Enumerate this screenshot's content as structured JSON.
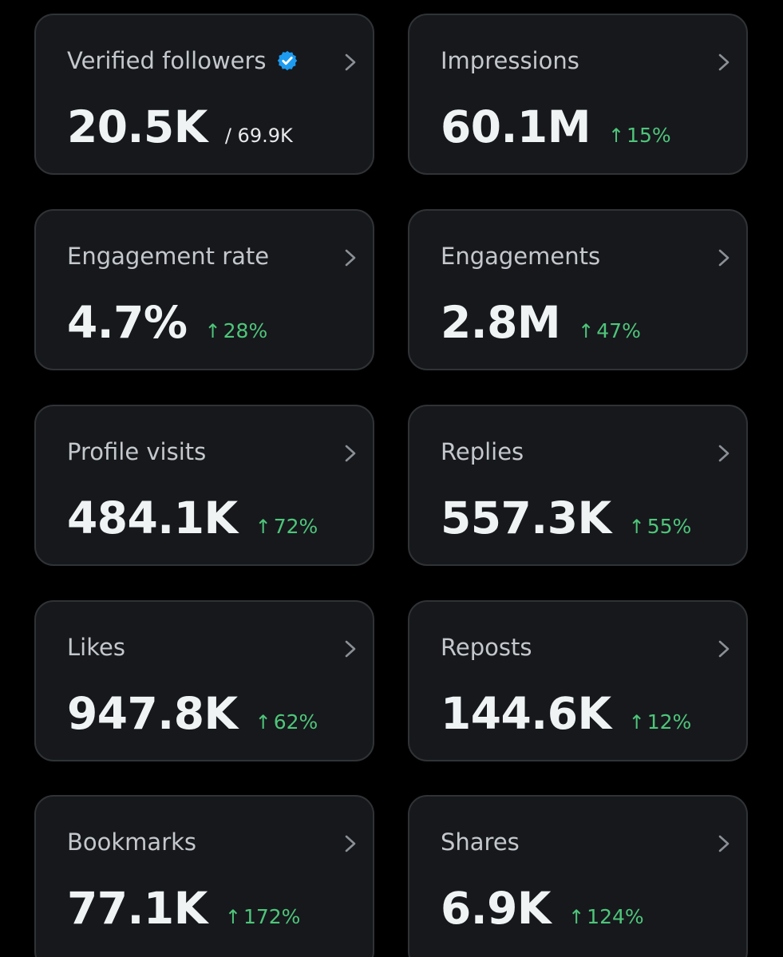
{
  "stats": [
    {
      "label": "Verified followers",
      "value": "20.5K",
      "total": "/ 69.9K",
      "change": "",
      "verified": true
    },
    {
      "label": "Impressions",
      "value": "60.1M",
      "total": "",
      "change": "15%"
    },
    {
      "label": "Engagement rate",
      "value": "4.7%",
      "total": "",
      "change": "28%"
    },
    {
      "label": "Engagements",
      "value": "2.8M",
      "total": "",
      "change": "47%"
    },
    {
      "label": "Profile visits",
      "value": "484.1K",
      "total": "",
      "change": "72%"
    },
    {
      "label": "Replies",
      "value": "557.3K",
      "total": "",
      "change": "55%"
    },
    {
      "label": "Likes",
      "value": "947.8K",
      "total": "",
      "change": "62%"
    },
    {
      "label": "Reposts",
      "value": "144.6K",
      "total": "",
      "change": "12%"
    },
    {
      "label": "Bookmarks",
      "value": "77.1K",
      "total": "",
      "change": "172%"
    },
    {
      "label": "Shares",
      "value": "6.9K",
      "total": "",
      "change": "124%"
    }
  ],
  "icons": {
    "chevron": "chevron-right-icon",
    "verified": "verified-badge-icon",
    "up_arrow": "arrow-up-icon"
  },
  "colors": {
    "background": "#000000",
    "card": "#16181c",
    "card_border": "#2f3336",
    "positive_change": "#4fc57a",
    "verified_badge": "#1d9bf0"
  }
}
